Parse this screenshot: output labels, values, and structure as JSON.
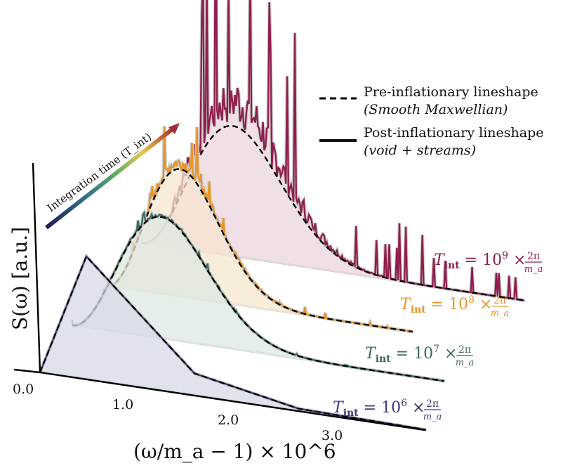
{
  "chart_data": {
    "type": "line",
    "ylabel": "S(ω) [a.u.]",
    "xlabel": "(ω/m_a − 1) × 10^6",
    "x_ticks": [
      "0.0",
      "1.0",
      "2.0",
      "3.0"
    ],
    "integration_label": "Integration time (T_int)",
    "legend": [
      {
        "label": "Pre-inflationary lineshape",
        "sub": "(Smooth Maxwellian)",
        "style": "dashed"
      },
      {
        "label": "Post-inflationary lineshape",
        "sub": "(void + streams)",
        "style": "solid"
      }
    ],
    "series": [
      {
        "name": "T_int = 10^6 × 2π/m_a",
        "label_main": "T",
        "label_sub": "int",
        "label_rest": " = 10",
        "label_exp": "6",
        "label_tail": " × ",
        "frac_num": "2π",
        "frac_den": "m_a",
        "color": "#3b3a78",
        "fill": "#d6d9e8",
        "noise": 0.0
      },
      {
        "name": "T_int = 10^7 × 2π/m_a",
        "label_main": "T",
        "label_sub": "int",
        "label_rest": " = 10",
        "label_exp": "7",
        "label_tail": " × ",
        "frac_num": "2π",
        "frac_den": "m_a",
        "color": "#3d6b5a",
        "fill": "#dde8e2",
        "noise": 0.05
      },
      {
        "name": "T_int = 10^8 × 2π/m_a",
        "label_main": "T",
        "label_sub": "int",
        "label_rest": " = 10",
        "label_exp": "8",
        "label_tail": " × ",
        "frac_num": "2π",
        "frac_den": "m_a",
        "color": "#e8962a",
        "fill": "#f6e6cf",
        "noise": 0.25
      },
      {
        "name": "T_int = 10^9 × 2π/m_a",
        "label_main": "T",
        "label_sub": "int",
        "label_rest": " = 10",
        "label_exp": "9",
        "label_tail": " × ",
        "frac_num": "2π",
        "frac_den": "m_a",
        "color": "#8e1f4d",
        "fill": "#ecd4de",
        "noise": 1.0
      }
    ],
    "colors": {
      "axis": "#000000",
      "gradient": [
        "#2a1d5e",
        "#3b6b8c",
        "#5ba865",
        "#e8c84a",
        "#b3302f"
      ]
    }
  }
}
